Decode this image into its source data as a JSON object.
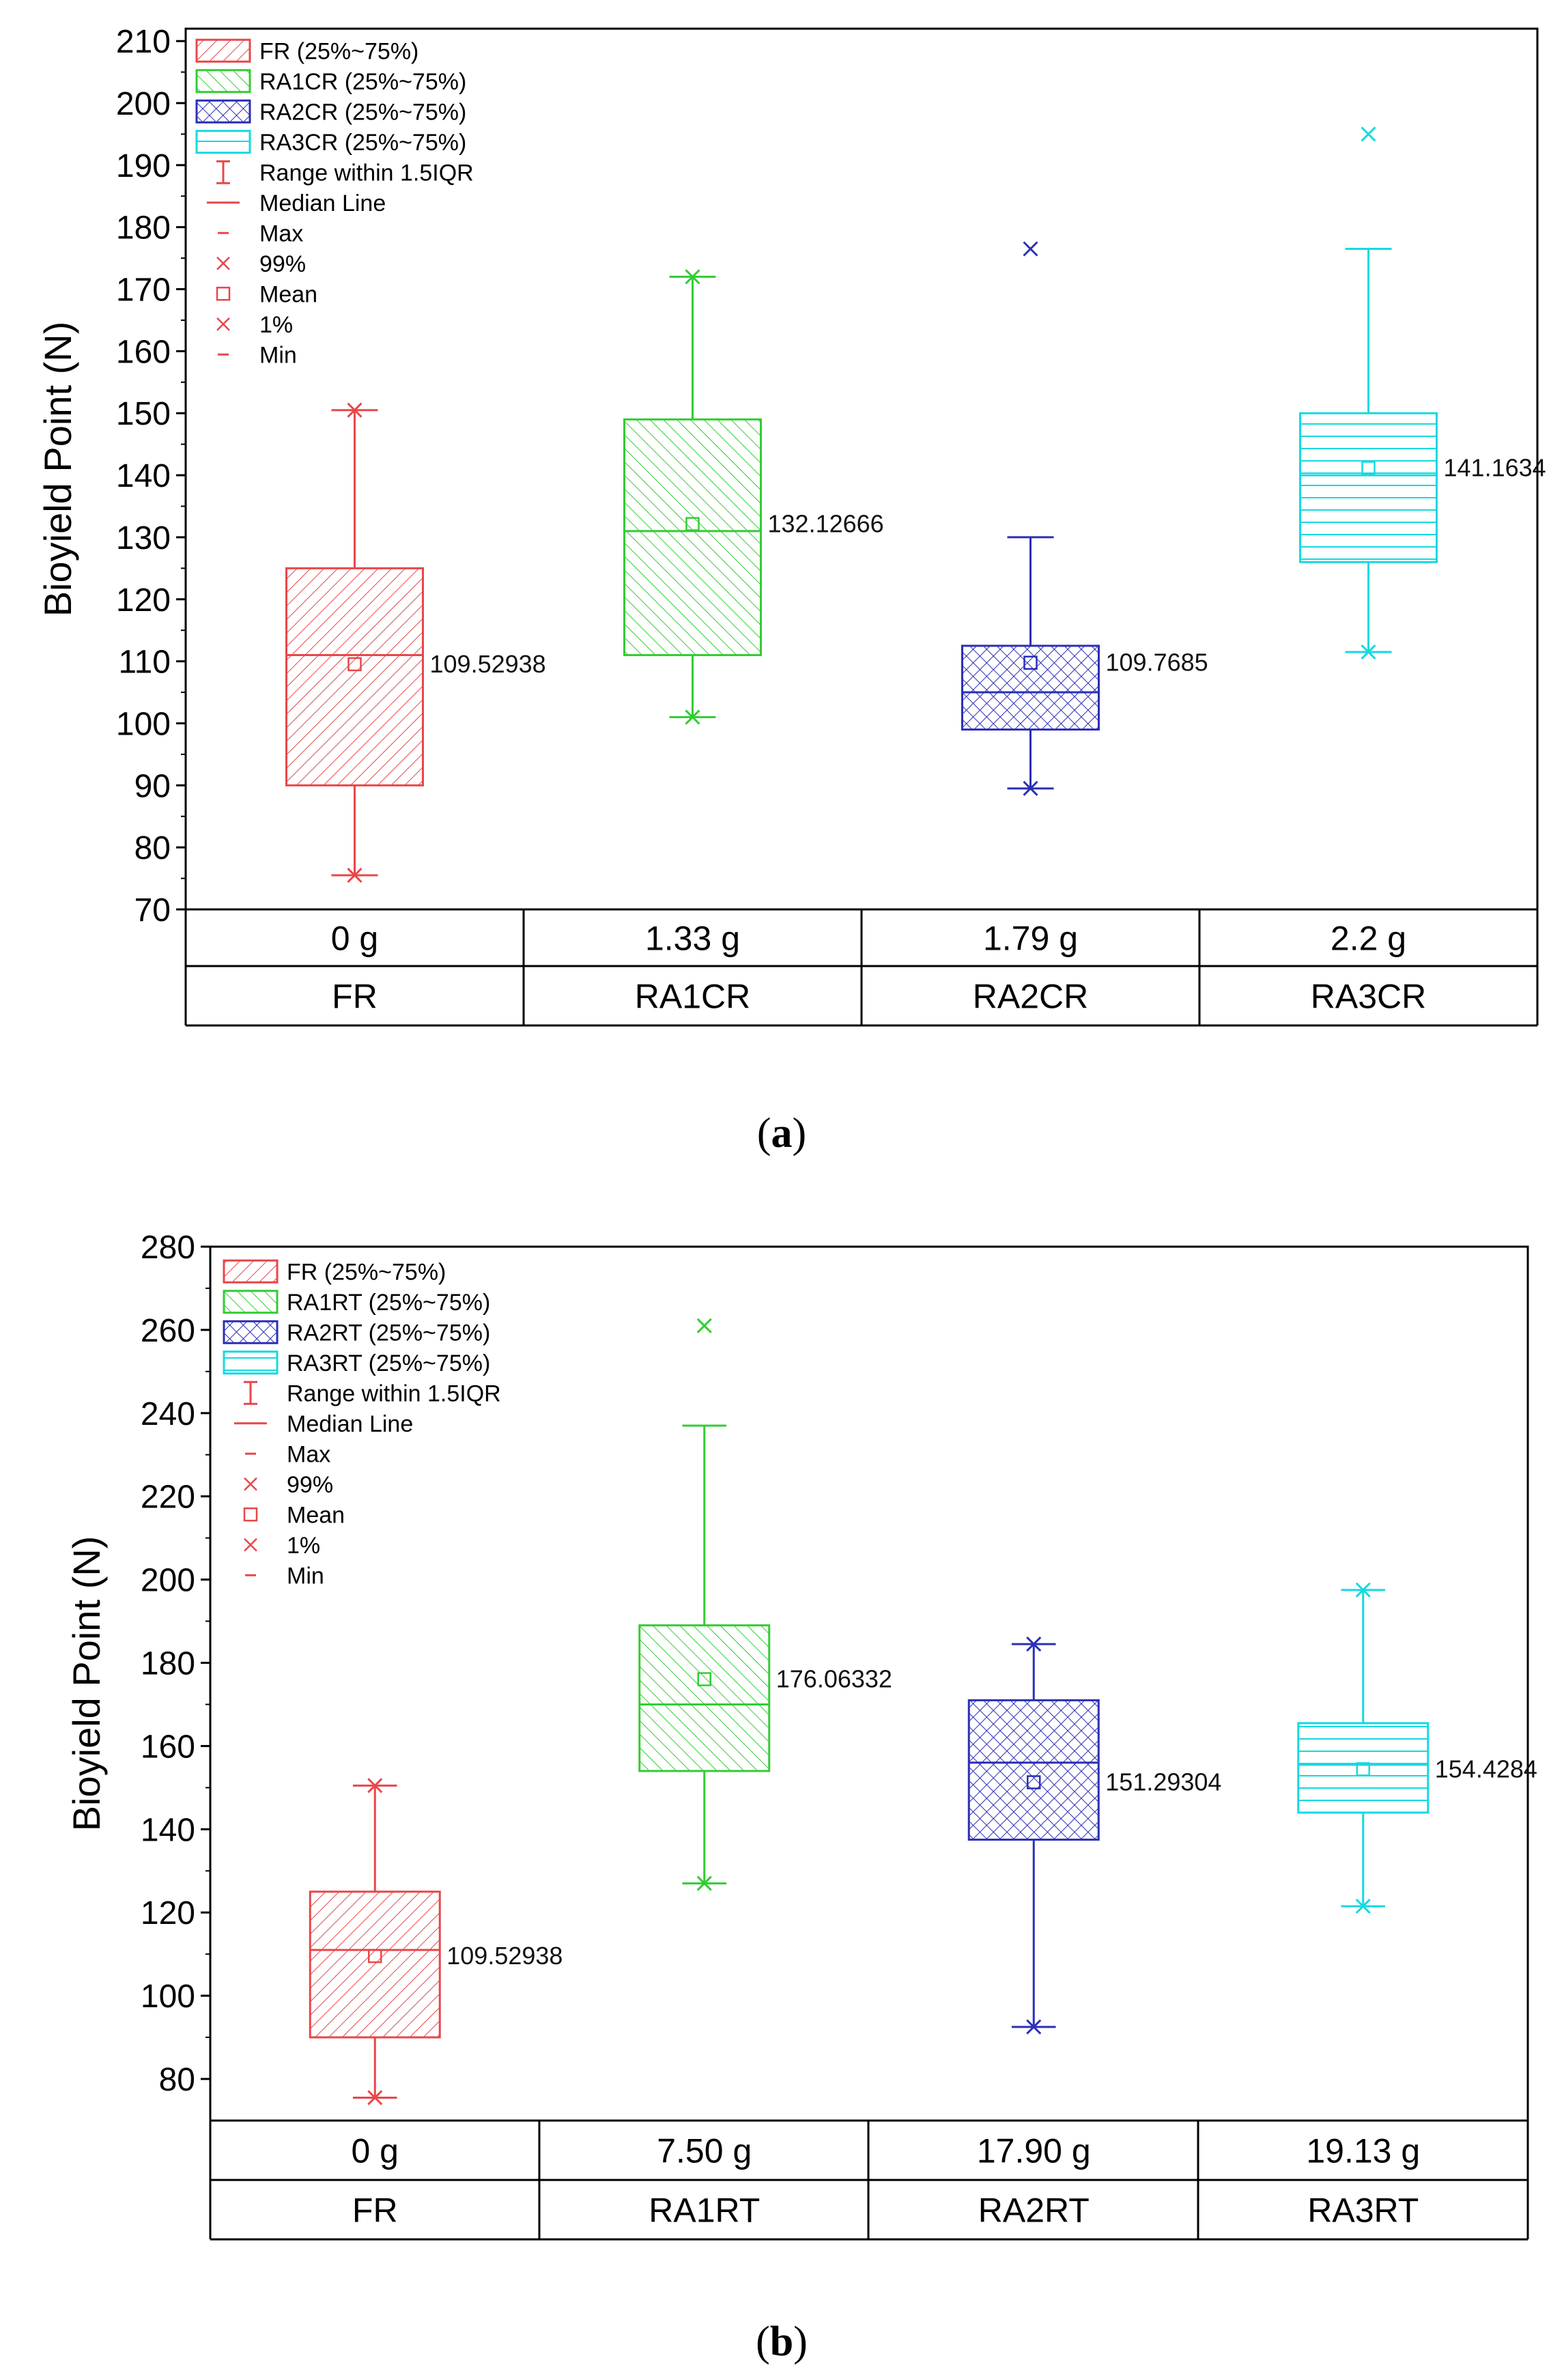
{
  "chart_data": [
    {
      "type": "box",
      "panel_label": "a",
      "ylabel": "Bioyield Point (N)",
      "ylim": [
        70,
        212
      ],
      "yticks": [
        70,
        80,
        90,
        100,
        110,
        120,
        130,
        140,
        150,
        160,
        170,
        180,
        190,
        200,
        210
      ],
      "categories": [
        "FR",
        "RA1CR",
        "RA2CR",
        "RA3CR"
      ],
      "masses": [
        "0 g",
        "1.33 g",
        "1.79 g",
        "2.2 g"
      ],
      "mean_labels": [
        "109.52938",
        "132.12666",
        "109.7685",
        "141.1634"
      ],
      "legend_entries": [
        "FR (25%~75%)",
        "RA1CR (25%~75%)",
        "RA2CR (25%~75%)",
        "RA3CR (25%~75%)",
        "Range within 1.5IQR",
        "Median Line",
        "Max",
        "99%",
        "Mean",
        "1%",
        "Min"
      ],
      "series": [
        {
          "name": "FR",
          "color": "#e8474a",
          "pattern": "diag",
          "q1": 90,
          "q3": 125,
          "median": 111,
          "mean": 109.52938,
          "whisker_low": 75.5,
          "whisker_high": 150.5,
          "p1": 75.5,
          "p99": 150.5
        },
        {
          "name": "RA1CR",
          "color": "#33cc33",
          "pattern": "diag-rev",
          "q1": 111,
          "q3": 149,
          "median": 131,
          "mean": 132.12666,
          "whisker_low": 101,
          "whisker_high": 172,
          "p1": 101,
          "p99": 172
        },
        {
          "name": "RA2CR",
          "color": "#2b2fb5",
          "pattern": "cross",
          "q1": 99,
          "q3": 112.5,
          "median": 105,
          "mean": 109.7685,
          "whisker_low": 89.5,
          "whisker_high": 130,
          "p1": 89.5,
          "p99": 176.5
        },
        {
          "name": "RA3CR",
          "color": "#16d9e0",
          "pattern": "horiz",
          "q1": 126,
          "q3": 150,
          "median": 140,
          "mean": 141.1634,
          "whisker_low": 111.5,
          "whisker_high": 176.5,
          "p1": 111.5,
          "p99": 195
        }
      ]
    },
    {
      "type": "box",
      "panel_label": "b",
      "ylabel": "Bioyield Point (N)",
      "ylim": [
        70,
        280
      ],
      "yticks": [
        80,
        100,
        120,
        140,
        160,
        180,
        200,
        220,
        240,
        260,
        280
      ],
      "categories": [
        "FR",
        "RA1RT",
        "RA2RT",
        "RA3RT"
      ],
      "masses": [
        "0 g",
        "7.50 g",
        "17.90 g",
        "19.13 g"
      ],
      "mean_labels": [
        "109.52938",
        "176.06332",
        "151.29304",
        "154.4284"
      ],
      "legend_entries": [
        "FR (25%~75%)",
        "RA1RT (25%~75%)",
        "RA2RT (25%~75%)",
        "RA3RT (25%~75%)",
        "Range within 1.5IQR",
        "Median Line",
        "Max",
        "99%",
        "Mean",
        "1%",
        "Min"
      ],
      "series": [
        {
          "name": "FR",
          "color": "#e8474a",
          "pattern": "diag",
          "q1": 90,
          "q3": 125,
          "median": 111,
          "mean": 109.52938,
          "whisker_low": 75.5,
          "whisker_high": 150.5,
          "p1": 75.5,
          "p99": 150.5
        },
        {
          "name": "RA1RT",
          "color": "#33cc33",
          "pattern": "diag-rev",
          "q1": 154,
          "q3": 189,
          "median": 170,
          "mean": 176.06332,
          "whisker_low": 127,
          "whisker_high": 237,
          "p1": 127,
          "p99": 261
        },
        {
          "name": "RA2RT",
          "color": "#2b2fb5",
          "pattern": "cross",
          "q1": 137.5,
          "q3": 171,
          "median": 156,
          "mean": 151.29304,
          "whisker_low": 92.5,
          "whisker_high": 184.5,
          "p1": 92.5,
          "p99": 184.5
        },
        {
          "name": "RA3RT",
          "color": "#16d9e0",
          "pattern": "horiz",
          "q1": 144,
          "q3": 165.5,
          "median": 155.5,
          "mean": 154.4284,
          "whisker_low": 121.5,
          "whisker_high": 197.5,
          "p1": 121.5,
          "p99": 197.5
        }
      ]
    }
  ]
}
